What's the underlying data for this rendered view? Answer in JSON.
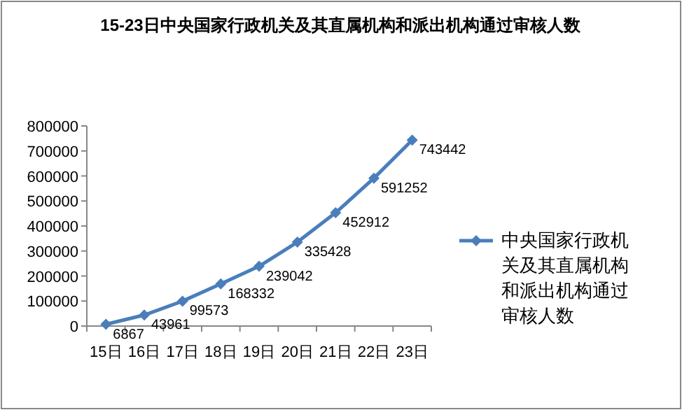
{
  "chart_data": {
    "type": "line",
    "title": "15-23日中央国家行政机关及其直属机构和派出机构通过审核人数",
    "categories": [
      "15日",
      "16日",
      "17日",
      "18日",
      "19日",
      "20日",
      "21日",
      "22日",
      "23日"
    ],
    "series": [
      {
        "name": "中央国家行政机关及其直属机构和派出机构通过审核人数",
        "color": "#4a7ebb",
        "values": [
          6867,
          43961,
          99573,
          168332,
          239042,
          335428,
          452912,
          591252,
          743442
        ]
      }
    ],
    "ylim": [
      0,
      800000
    ],
    "yticks": [
      0,
      100000,
      200000,
      300000,
      400000,
      500000,
      600000,
      700000,
      800000
    ],
    "data_labels": true,
    "legend": "right",
    "marker": "diamond",
    "line_style": "solid"
  }
}
